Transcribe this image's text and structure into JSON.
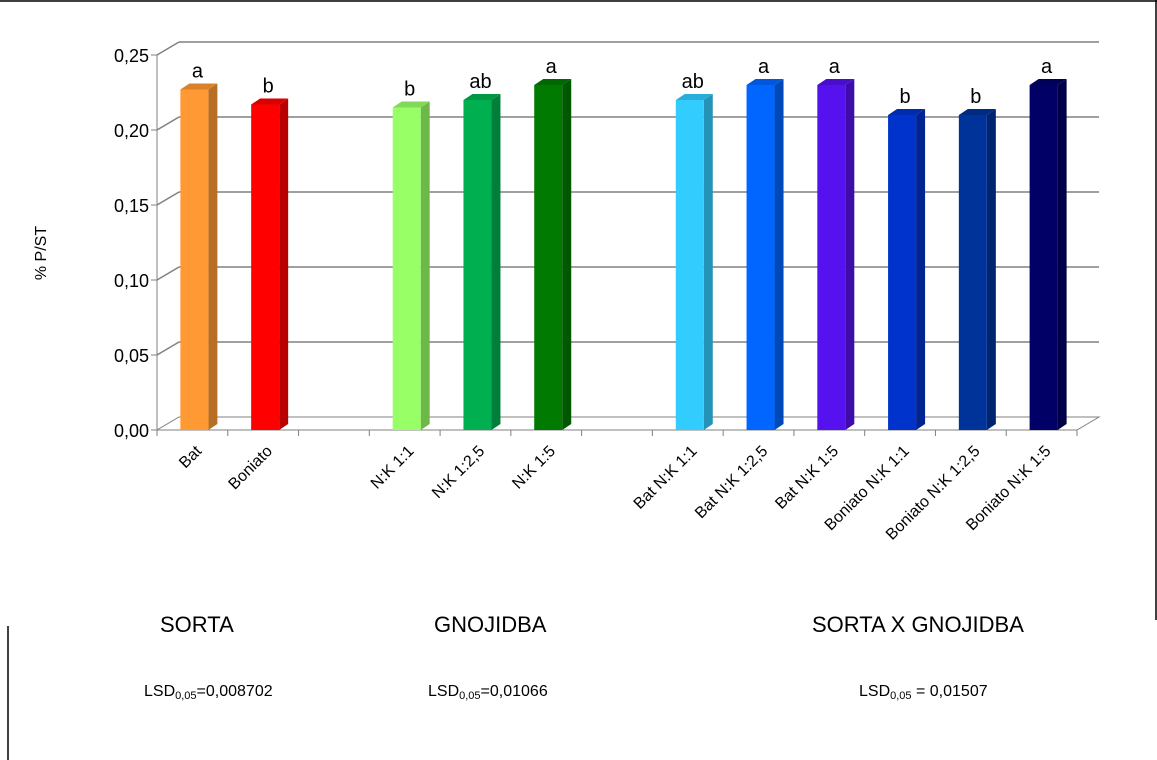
{
  "chart_data": {
    "type": "bar",
    "ylabel": "% P/ST",
    "ylim": [
      0,
      0.25
    ],
    "y_ticks": [
      "0,00",
      "0,05",
      "0,10",
      "0,15",
      "0,20",
      "0,25"
    ],
    "grid": true,
    "style": "3d-column",
    "categories": [
      "Bat",
      "Boniato",
      "N:K 1:1",
      "N:K 1:2,5",
      "N:K 1:5",
      "Bat N:K 1:1",
      "Bat N:K 1:2,5",
      "Bat N:K 1:5",
      "Boniato N:K 1:1",
      "Boniato N:K 1:2,5",
      "Boniato N:K 1:5"
    ],
    "values": [
      0.227,
      0.217,
      0.215,
      0.22,
      0.23,
      0.22,
      0.23,
      0.23,
      0.21,
      0.21,
      0.23
    ],
    "letters": [
      "a",
      "b",
      "b",
      "ab",
      "a",
      "ab",
      "a",
      "a",
      "b",
      "b",
      "a"
    ],
    "colors": [
      "#FF9933",
      "#FF0000",
      "#99FF66",
      "#00B050",
      "#007A00",
      "#33CCFF",
      "#0066FF",
      "#5511EE",
      "#0033CC",
      "#003399",
      "#000066"
    ],
    "groups": [
      {
        "label": "SORTA",
        "lsd_label": "LSD",
        "lsd_sub": "0,05",
        "lsd_value": "=0,008702"
      },
      {
        "label": "GNOJIDBA",
        "lsd_label": "LSD",
        "lsd_sub": "0,05",
        "lsd_value": "=0,01066"
      },
      {
        "label": "SORTA X GNOJIDBA",
        "lsd_label": "LSD",
        "lsd_sub": "0,05",
        "lsd_value": " = 0,01507"
      }
    ]
  }
}
